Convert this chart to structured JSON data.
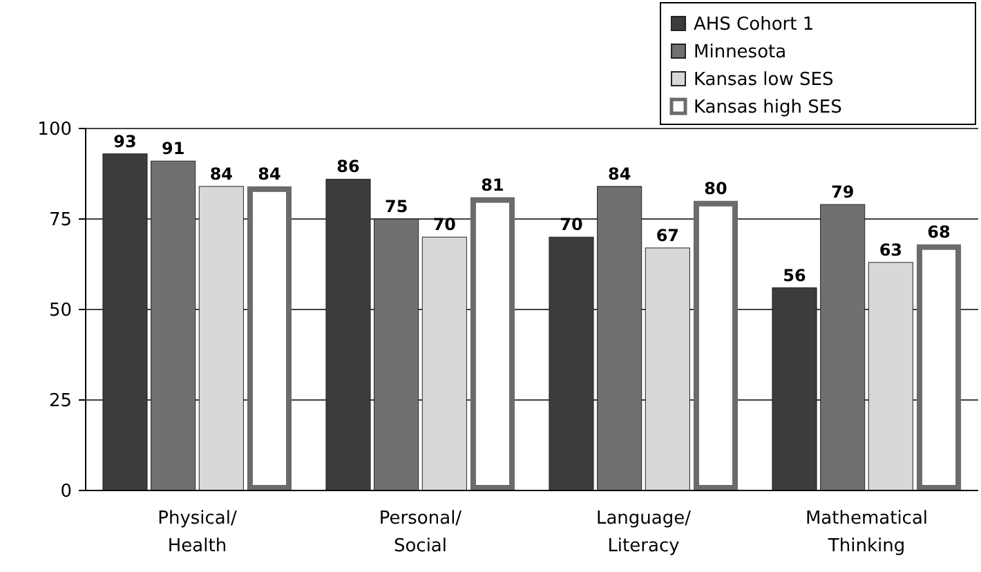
{
  "chart_data": {
    "type": "bar",
    "categories": [
      "Physical/\nHealth",
      "Personal/\nSocial",
      "Language/\nLiteracy",
      "Mathematical\nThinking"
    ],
    "series": [
      {
        "name": "AHS Cohort 1",
        "color": "#3c3c3c",
        "values": [
          93,
          86,
          70,
          56
        ]
      },
      {
        "name": "Minnesota",
        "color": "#707070",
        "values": [
          91,
          75,
          84,
          79
        ]
      },
      {
        "name": "Kansas low SES",
        "color": "#d8d8d8",
        "values": [
          84,
          70,
          67,
          63
        ]
      },
      {
        "name": "Kansas high SES",
        "color": "#ffffff",
        "values": [
          84,
          81,
          80,
          68
        ]
      }
    ],
    "ylim": [
      0,
      100
    ],
    "yticks": [
      0,
      25,
      50,
      75,
      100
    ],
    "grid": "y",
    "legend": "top right",
    "data_labels": true
  }
}
